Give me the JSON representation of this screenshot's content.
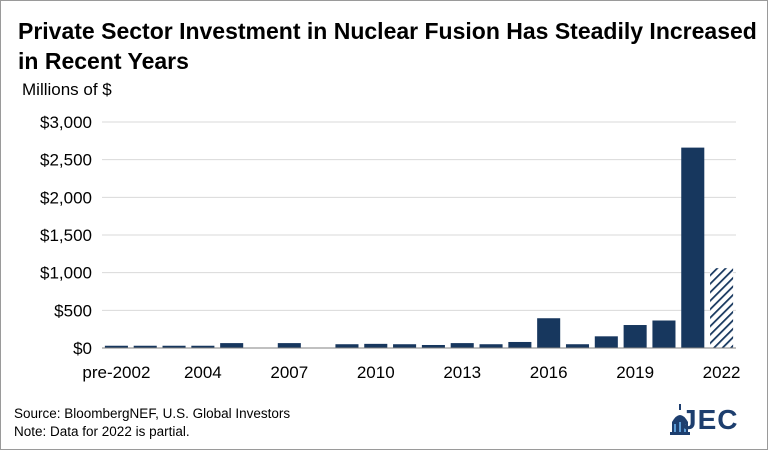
{
  "header": {
    "title": "Private Sector Investment in Nuclear Fusion Has Steadily Increased in Recent Years",
    "y_unit_label": "Millions of $"
  },
  "footer": {
    "source": "Source: BloombergNEF, U.S. Global Investors",
    "note": "Note: Data for 2022 is partial."
  },
  "logo": {
    "text": "JEC",
    "icon": "capitol-dome-icon"
  },
  "colors": {
    "bar": "#17375e",
    "grid": "#d9d9d9",
    "axis": "#808080"
  },
  "chart_data": {
    "type": "bar",
    "categories": [
      "pre-2002",
      "2002",
      "2003",
      "2004",
      "2005",
      "2006",
      "2007",
      "2008",
      "2009",
      "2010",
      "2011",
      "2012",
      "2013",
      "2014",
      "2015",
      "2016",
      "2017",
      "2018",
      "2019",
      "2020",
      "2021",
      "2022"
    ],
    "values": [
      30,
      30,
      30,
      30,
      65,
      5,
      65,
      5,
      50,
      55,
      50,
      40,
      65,
      50,
      80,
      395,
      50,
      155,
      305,
      365,
      2660,
      1060
    ],
    "partial": [
      false,
      false,
      false,
      false,
      false,
      false,
      false,
      false,
      false,
      false,
      false,
      false,
      false,
      false,
      false,
      false,
      false,
      false,
      false,
      false,
      false,
      true
    ],
    "xtick_labels": [
      "pre-2002",
      "2004",
      "2007",
      "2010",
      "2013",
      "2016",
      "2019",
      "2022"
    ],
    "xtick_indices": [
      0,
      3,
      6,
      9,
      12,
      15,
      18,
      21
    ],
    "yticks": [
      0,
      500,
      1000,
      1500,
      2000,
      2500,
      3000
    ],
    "ytick_labels": [
      "$0",
      "$500",
      "$1,000",
      "$1,500",
      "$2,000",
      "$2,500",
      "$3,000"
    ],
    "ylim": [
      0,
      3000
    ],
    "title": "Private Sector Investment in Nuclear Fusion Has Steadily Increased in Recent Years",
    "ylabel": "Millions of $",
    "xlabel": "",
    "grid": true,
    "legend": "none"
  }
}
